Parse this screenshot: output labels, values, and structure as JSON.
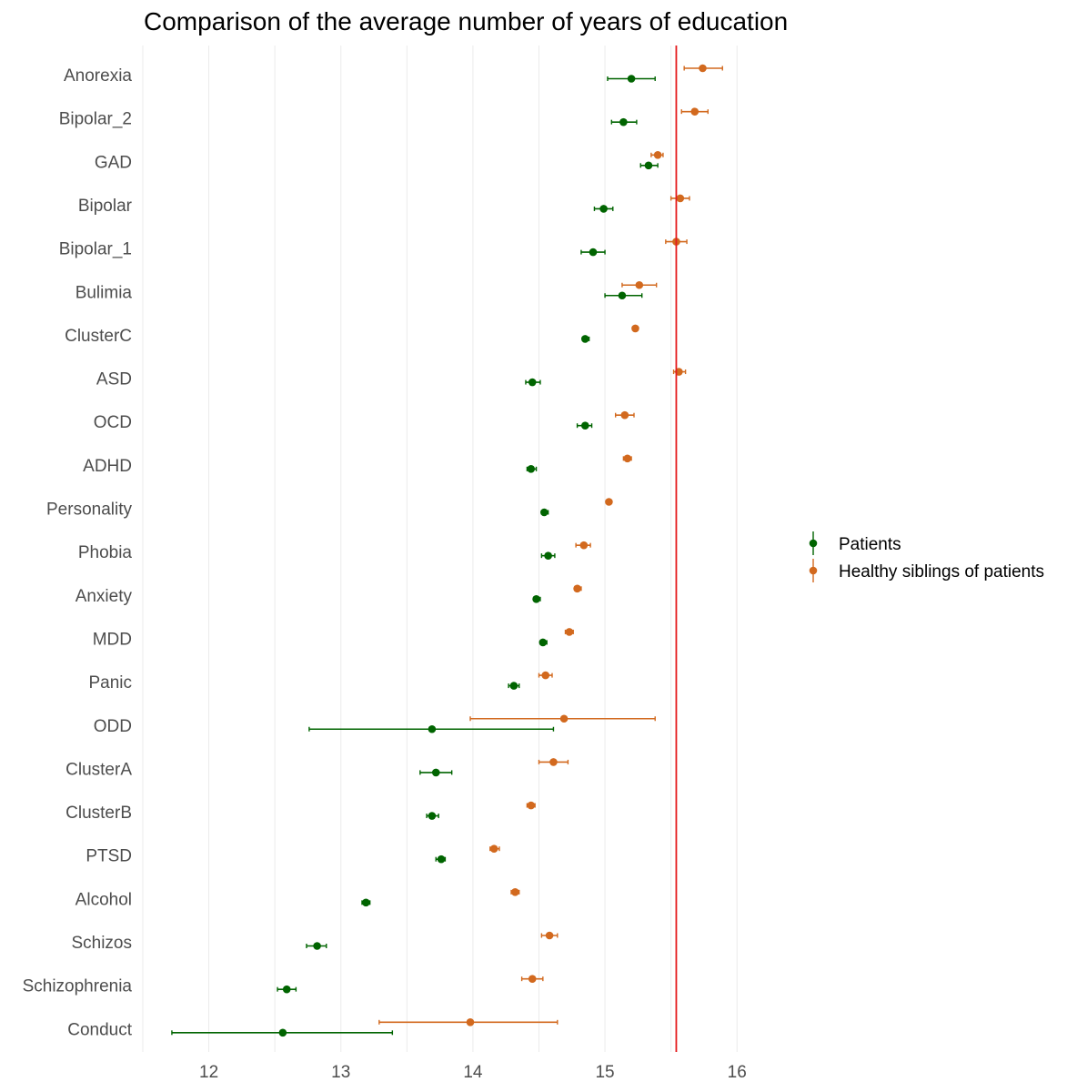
{
  "chart_data": {
    "type": "scatter",
    "subtype": "dot-and-whisker",
    "title": "Comparison of the average number of years of education",
    "xlabel": "",
    "ylabel": "",
    "xlim": [
      11.5,
      16.15
    ],
    "x_ticks": [
      12,
      13,
      14,
      15,
      16
    ],
    "grid": "vertical",
    "legend_position": "right",
    "reference_line": {
      "x": 15.54,
      "color": "#e41a1c"
    },
    "categories": [
      "Anorexia",
      "Bipolar_2",
      "GAD",
      "Bipolar",
      "Bipolar_1",
      "Bulimia",
      "ClusterC",
      "ASD",
      "OCD",
      "ADHD",
      "Personality",
      "Phobia",
      "Anxiety",
      "MDD",
      "Panic",
      "ODD",
      "ClusterA",
      "ClusterB",
      "PTSD",
      "Alcohol",
      "Schizos",
      "Schizophrenia",
      "Conduct"
    ],
    "series": [
      {
        "name": "Patients",
        "color": "#006400",
        "values": [
          15.2,
          15.14,
          15.33,
          14.99,
          14.91,
          15.13,
          14.85,
          14.45,
          14.85,
          14.44,
          14.54,
          14.57,
          14.48,
          14.53,
          14.31,
          13.69,
          13.72,
          13.69,
          13.76,
          13.19,
          12.82,
          12.59,
          12.56
        ],
        "lower": [
          15.02,
          15.05,
          15.27,
          14.92,
          14.82,
          15.0,
          14.83,
          14.4,
          14.79,
          14.41,
          14.52,
          14.52,
          14.46,
          14.51,
          14.27,
          12.76,
          13.6,
          13.65,
          13.72,
          13.16,
          12.74,
          12.52,
          11.72
        ],
        "upper": [
          15.38,
          15.24,
          15.4,
          15.06,
          15.0,
          15.28,
          14.88,
          14.51,
          14.9,
          14.48,
          14.57,
          14.62,
          14.51,
          14.56,
          14.35,
          14.61,
          13.84,
          13.74,
          13.79,
          13.22,
          12.89,
          12.66,
          13.39
        ]
      },
      {
        "name": "Healthy siblings of patients",
        "color": "#d2691e",
        "values": [
          15.74,
          15.68,
          15.4,
          15.57,
          15.54,
          15.26,
          15.23,
          15.56,
          15.15,
          15.17,
          15.03,
          14.84,
          14.79,
          14.73,
          14.55,
          14.69,
          14.61,
          14.44,
          14.16,
          14.32,
          14.58,
          14.45,
          13.98
        ],
        "lower": [
          15.6,
          15.58,
          15.35,
          15.5,
          15.46,
          15.13,
          15.21,
          15.52,
          15.08,
          15.14,
          15.01,
          14.78,
          14.77,
          14.7,
          14.5,
          13.98,
          14.5,
          14.41,
          14.13,
          14.29,
          14.52,
          14.37,
          13.29
        ],
        "upper": [
          15.89,
          15.78,
          15.44,
          15.64,
          15.62,
          15.39,
          15.25,
          15.61,
          15.22,
          15.2,
          15.05,
          14.89,
          14.82,
          14.76,
          14.6,
          15.38,
          14.72,
          14.47,
          14.2,
          14.35,
          14.64,
          14.53,
          14.64
        ]
      }
    ]
  }
}
